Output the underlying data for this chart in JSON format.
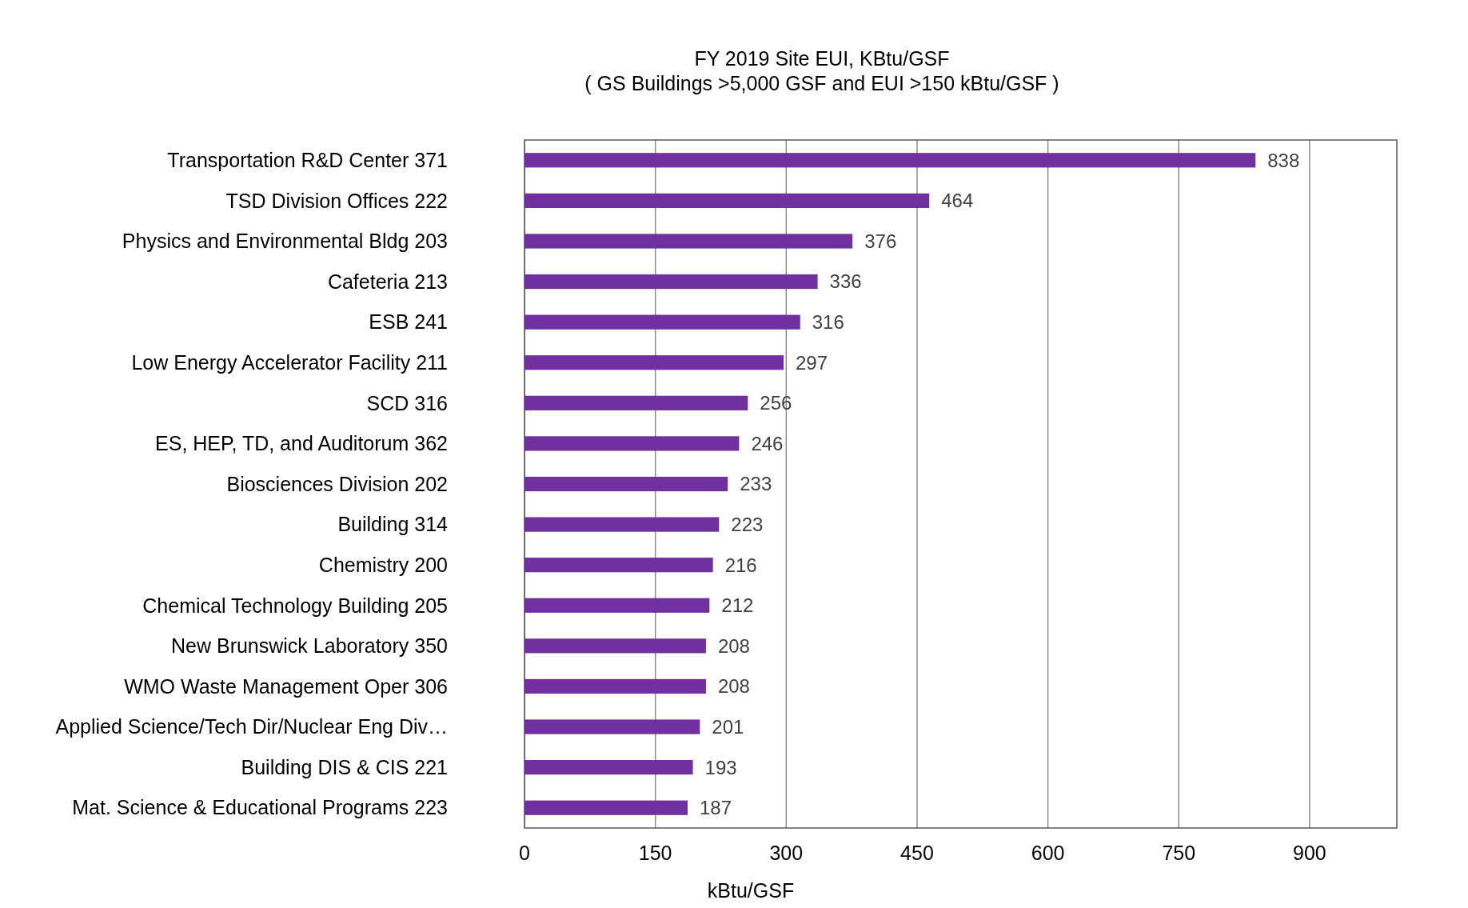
{
  "chart_data": {
    "type": "bar",
    "orientation": "horizontal",
    "title": "FY 2019 Site EUI, KBtu/GSF",
    "subtitle": "( GS Buildings >5,000 GSF and EUI >150 kBtu/GSF )",
    "xlabel": "kBtu/GSF",
    "categories": [
      "Transportation R&D Center 371",
      "TSD Division Offices 222",
      "Physics and Environmental Bldg 203",
      "Cafeteria 213",
      "ESB 241",
      "Low Energy Accelerator Facility 211",
      "SCD 316",
      "ES, HEP, TD, and Auditorum 362",
      "Biosciences Division 202",
      "Building 314",
      "Chemistry 200",
      "Chemical Technology Building 205",
      "New Brunswick Laboratory 350",
      "WMO Waste Management Oper  306",
      "Applied Science/Tech Dir/Nuclear Eng Div…",
      "Building DIS & CIS 221",
      "Mat. Science & Educational Programs  223"
    ],
    "values": [
      838,
      464,
      376,
      336,
      316,
      297,
      256,
      246,
      233,
      223,
      216,
      212,
      208,
      208,
      201,
      193,
      187
    ],
    "color": "#7030a0",
    "xlim": [
      0,
      1000
    ],
    "xticks": [
      0,
      150,
      300,
      450,
      600,
      750,
      900
    ],
    "grid": "x",
    "data_labels": true
  }
}
